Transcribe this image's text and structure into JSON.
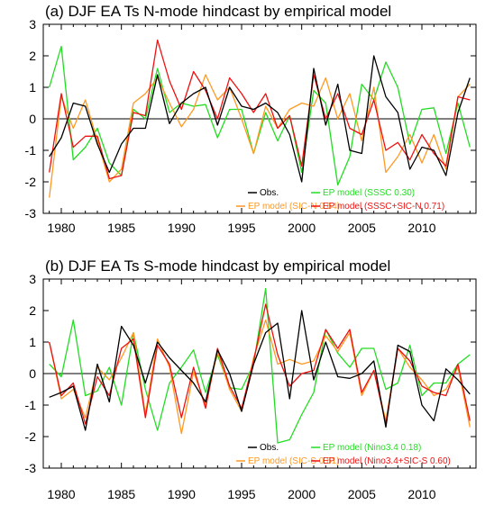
{
  "chart_data": [
    {
      "type": "line",
      "title": "(a) DJF EA Ts N-mode hindcast by empirical model",
      "xlabel": "",
      "ylabel": "",
      "xlim": [
        1978.5,
        2014.5
      ],
      "ylim": [
        -3,
        3
      ],
      "xticks": [
        1980,
        1985,
        1990,
        1995,
        2000,
        2005,
        2010
      ],
      "yticks": [
        -3,
        -2,
        -1,
        0,
        1,
        2,
        3
      ],
      "zero_line": true,
      "x": [
        1979,
        1980,
        1981,
        1982,
        1983,
        1984,
        1985,
        1986,
        1987,
        1988,
        1989,
        1990,
        1991,
        1992,
        1993,
        1994,
        1995,
        1996,
        1997,
        1998,
        1999,
        2000,
        2001,
        2002,
        2003,
        2004,
        2005,
        2006,
        2007,
        2008,
        2009,
        2010,
        2011,
        2012,
        2013,
        2014
      ],
      "series": [
        {
          "name": "Obs.",
          "color": "#000000",
          "legend_label": "Obs.",
          "values": [
            -1.2,
            -0.6,
            0.5,
            0.4,
            -0.8,
            -1.7,
            -0.8,
            -0.3,
            -0.3,
            1.4,
            -0.15,
            0.5,
            0.8,
            1.0,
            -0.2,
            1.0,
            0.4,
            0.3,
            0.5,
            0.2,
            -0.5,
            -2.0,
            1.6,
            -0.2,
            1.1,
            -1.0,
            -1.1,
            2.0,
            0.7,
            0.2,
            -1.6,
            -0.9,
            -1.0,
            -1.8,
            0.2,
            1.3
          ]
        },
        {
          "name": "EP model (SSSC 0.30)",
          "color": "#22dd22",
          "legend_label": "EP model (SSSC 0.30)",
          "values": [
            1.0,
            2.3,
            -1.3,
            -0.9,
            -0.3,
            -1.4,
            -1.8,
            0.3,
            0.0,
            1.6,
            0.2,
            0.5,
            0.4,
            0.45,
            -0.6,
            0.3,
            0.3,
            -1.1,
            0.2,
            -0.7,
            0.1,
            -1.7,
            0.9,
            0.5,
            -2.1,
            -1.2,
            1.1,
            0.6,
            1.8,
            1.0,
            -0.8,
            0.3,
            0.35,
            -1.1,
            0.5,
            -0.9
          ]
        },
        {
          "name": "EP model (SIC-N 0.64)",
          "color": "#ff9922",
          "legend_label": "EP model (SIC-N 0.64)",
          "values": [
            -2.5,
            0.7,
            -0.3,
            0.6,
            -0.7,
            -2.0,
            -1.6,
            0.5,
            0.8,
            1.3,
            0.5,
            -0.25,
            0.3,
            1.4,
            0.6,
            1.0,
            0.0,
            -1.1,
            0.4,
            -0.3,
            0.3,
            0.5,
            0.4,
            1.3,
            0.0,
            0.8,
            -0.7,
            1.0,
            -1.7,
            -1.2,
            -0.5,
            -1.4,
            -0.5,
            -1.6,
            0.7,
            1.1
          ]
        },
        {
          "name": "EP model (SSSC+SIC-N 0.71)",
          "color": "#ee1111",
          "legend_label": "EP model (SSSC+SIC-N 0.71)",
          "values": [
            -1.7,
            0.8,
            -0.9,
            -0.55,
            -0.55,
            -1.9,
            -1.8,
            0.2,
            0.1,
            2.5,
            1.2,
            0.3,
            1.5,
            0.9,
            0.0,
            1.3,
            0.8,
            0.2,
            0.8,
            -0.3,
            0.1,
            -1.5,
            1.4,
            0.0,
            0.8,
            -0.3,
            -0.5,
            0.6,
            -1.0,
            -0.75,
            -1.3,
            -0.5,
            -1.1,
            -1.5,
            0.7,
            0.6
          ]
        }
      ]
    },
    {
      "type": "line",
      "title": "(b) DJF EA Ts S-mode hindcast by empirical model",
      "xlabel": "",
      "ylabel": "",
      "xlim": [
        1978.5,
        2014.5
      ],
      "ylim": [
        -3,
        3
      ],
      "xticks": [
        1980,
        1985,
        1990,
        1995,
        2000,
        2005,
        2010
      ],
      "yticks": [
        -3,
        -2,
        -1,
        0,
        1,
        2,
        3
      ],
      "zero_line": true,
      "x": [
        1979,
        1980,
        1981,
        1982,
        1983,
        1984,
        1985,
        1986,
        1987,
        1988,
        1989,
        1990,
        1991,
        1992,
        1993,
        1994,
        1995,
        1996,
        1997,
        1998,
        1999,
        2000,
        2001,
        2002,
        2003,
        2004,
        2005,
        2006,
        2007,
        2008,
        2009,
        2010,
        2011,
        2012,
        2013,
        2014
      ],
      "series": [
        {
          "name": "Obs.",
          "color": "#000000",
          "legend_label": "Obs.",
          "values": [
            -0.75,
            -0.6,
            -0.4,
            -1.8,
            0.3,
            -0.9,
            1.5,
            0.9,
            -0.3,
            1.0,
            0.5,
            0.1,
            -0.3,
            -0.9,
            0.75,
            0.0,
            -1.2,
            0.3,
            1.3,
            1.6,
            -0.8,
            2.0,
            -0.2,
            1.0,
            -0.1,
            -0.15,
            0.0,
            0.4,
            -1.7,
            0.9,
            0.7,
            -1.0,
            -1.5,
            0.15,
            -0.2,
            -0.65
          ]
        },
        {
          "name": "EP model (Nino3.4 0.18)",
          "color": "#22dd22",
          "legend_label": "EP model (Nino3.4 0.18)",
          "values": [
            0.3,
            -0.1,
            1.7,
            -0.7,
            -0.55,
            0.2,
            -1.0,
            1.3,
            -0.5,
            -1.8,
            -0.3,
            0.2,
            0.75,
            -0.6,
            0.6,
            -0.45,
            -0.5,
            0.3,
            2.7,
            -2.2,
            -2.1,
            -1.3,
            -0.6,
            1.4,
            0.65,
            0.2,
            0.8,
            0.8,
            -0.5,
            -0.3,
            0.9,
            -0.7,
            -0.3,
            -0.3,
            0.3,
            0.6
          ]
        },
        {
          "name": "EP model (SIC-S 0.61)",
          "color": "#ff9922",
          "legend_label": "EP model (SIC-S 0.61)",
          "values": [
            1.0,
            -0.8,
            -0.5,
            -1.4,
            0.2,
            -0.2,
            0.5,
            1.3,
            -1.3,
            1.1,
            0.2,
            -1.9,
            0.05,
            -1.0,
            0.7,
            -0.5,
            -1.2,
            0.5,
            1.7,
            0.3,
            0.45,
            0.3,
            0.4,
            1.2,
            0.7,
            1.3,
            -0.7,
            0.1,
            -1.5,
            0.8,
            0.2,
            -0.2,
            -0.7,
            -0.5,
            0.2,
            -1.7
          ]
        },
        {
          "name": "EP model (Nino3.4+SIC-S 0.60)",
          "color": "#ee1111",
          "legend_label": "EP model (Nino3.4+SIC-S 0.60)",
          "values": [
            1.0,
            -0.7,
            -0.3,
            -1.6,
            -0.1,
            -0.7,
            0.8,
            1.1,
            -1.4,
            0.9,
            0.3,
            -1.4,
            0.2,
            -1.1,
            0.8,
            -0.4,
            -1.1,
            0.4,
            2.2,
            0.6,
            -0.4,
            0.0,
            0.1,
            1.4,
            0.8,
            1.4,
            -0.6,
            0.1,
            -1.6,
            0.8,
            0.4,
            -0.4,
            -0.6,
            -0.7,
            0.3,
            -1.5
          ]
        }
      ]
    }
  ]
}
